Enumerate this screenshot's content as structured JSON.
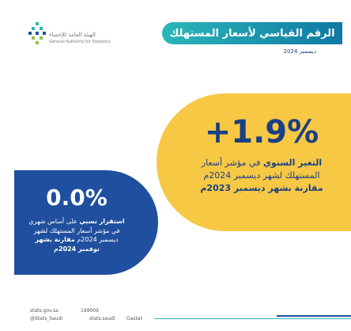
{
  "logo": {
    "name_ar": "الهيئة العامة للإحصاء",
    "name_en": "General Authority for Statistics"
  },
  "header": {
    "title": "الرقم القياسي لأسعار المستهلك",
    "date": "ديسمبر 2024"
  },
  "annual": {
    "value": "+1.9%",
    "lines": [
      [
        "التغير السنوي",
        "في مؤشر أسعار"
      ],
      [
        "المستهلك لشهر ديسمبر 2024م"
      ],
      [
        "مقارنة بشهر ديسمبر 2023م"
      ]
    ]
  },
  "monthly": {
    "value": "0.0%",
    "lines": [
      [
        "استقرار نسبي",
        "على أساس شهري"
      ],
      [
        "في مؤشر أسعار المستهلك لشهر"
      ],
      [
        "ديسمبر 2024م",
        "مقارنة بشهر"
      ],
      [
        "نوفمبر 2024م"
      ]
    ]
  },
  "footer": {
    "website": "stats.gov.sa",
    "phone": "199009",
    "twitter": "@Stats_Saudi",
    "social": "stats.saudi",
    "app": "Gastat"
  }
}
